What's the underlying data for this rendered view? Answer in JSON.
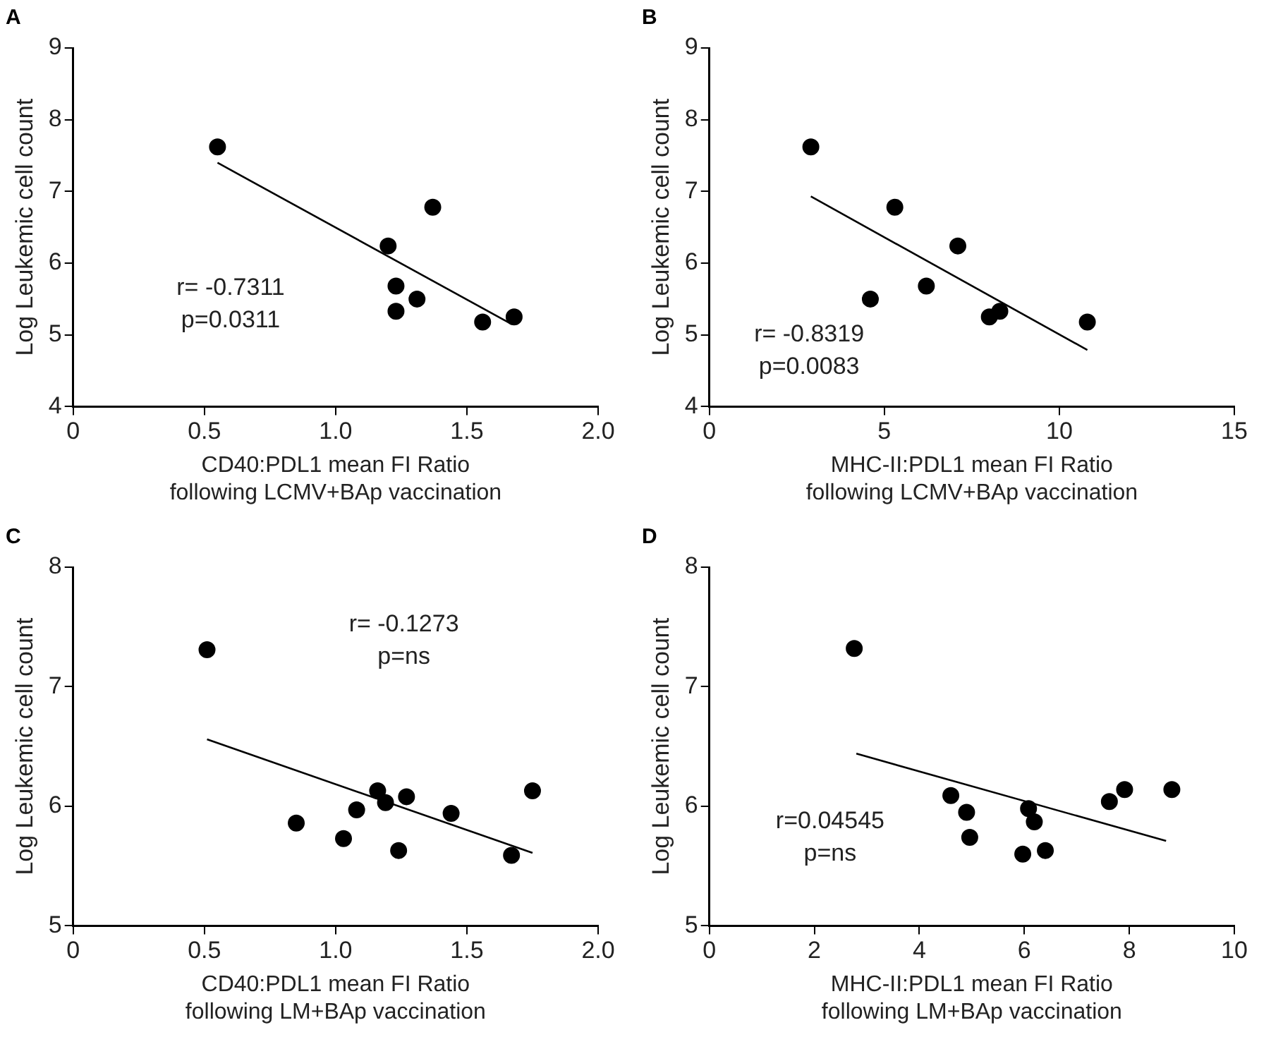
{
  "chart_data": [
    {
      "type": "scatter",
      "title": "A",
      "xlabel": "CD40:PDL1 mean FI Ratio\nfollowing LCMV+BAp vaccination",
      "ylabel": "Log Leukemic cell count",
      "xlim": [
        0,
        2
      ],
      "xticks": [
        {
          "value": 0,
          "label": "0"
        },
        {
          "value": 0.5,
          "label": "0.5"
        },
        {
          "value": 1,
          "label": "1.0"
        },
        {
          "value": 1.5,
          "label": "1.5"
        },
        {
          "value": 2,
          "label": "2.0"
        }
      ],
      "ylim": [
        4,
        9
      ],
      "yticks": [
        4,
        5,
        6,
        7,
        8,
        9
      ],
      "grid": false,
      "legend": false,
      "marker": "circle",
      "annotations": [
        "r= -0.7311",
        "p=0.0311"
      ],
      "series": [
        {
          "color": "#000000",
          "x": [
            0.55,
            1.2,
            1.23,
            1.23,
            1.31,
            1.37,
            1.56,
            1.68
          ],
          "values": [
            7.62,
            6.24,
            5.68,
            5.33,
            5.5,
            6.78,
            5.18,
            5.25
          ]
        },
        {
          "type": "line",
          "color": "#000000",
          "marker": "none",
          "x": [
            0.55,
            1.67
          ],
          "values": [
            7.4,
            5.15
          ]
        }
      ]
    },
    {
      "type": "scatter",
      "title": "B",
      "xlabel": "MHC-II:PDL1 mean FI Ratio\nfollowing LCMV+BAp vaccination",
      "ylabel": "Log Leukemic cell count",
      "xlim": [
        0,
        15
      ],
      "xticks": [
        0,
        5,
        10,
        15
      ],
      "ylim": [
        4,
        9
      ],
      "yticks": [
        4,
        5,
        6,
        7,
        8,
        9
      ],
      "grid": false,
      "legend": false,
      "marker": "circle",
      "annotations": [
        "r= -0.8319",
        "p=0.0083"
      ],
      "series": [
        {
          "color": "#000000",
          "x": [
            2.9,
            4.6,
            5.3,
            6.2,
            7.1,
            8.0,
            8.3,
            10.8
          ],
          "values": [
            7.62,
            5.5,
            6.78,
            5.68,
            6.24,
            5.25,
            5.33,
            5.18
          ]
        },
        {
          "type": "line",
          "color": "#000000",
          "marker": "none",
          "x": [
            2.9,
            10.8
          ],
          "values": [
            6.93,
            4.79
          ]
        }
      ]
    },
    {
      "type": "scatter",
      "title": "C",
      "xlabel": "CD40:PDL1 mean FI Ratio\nfollowing LM+BAp vaccination",
      "ylabel": "Log Leukemic cell count",
      "xlim": [
        0,
        2
      ],
      "xticks": [
        {
          "value": 0,
          "label": "0"
        },
        {
          "value": 0.5,
          "label": "0.5"
        },
        {
          "value": 1,
          "label": "1.0"
        },
        {
          "value": 1.5,
          "label": "1.5"
        },
        {
          "value": 2,
          "label": "2.0"
        }
      ],
      "ylim": [
        5,
        8
      ],
      "yticks": [
        5,
        6,
        7,
        8
      ],
      "grid": false,
      "legend": false,
      "marker": "circle",
      "annotations": [
        "r= -0.1273",
        "p=ns"
      ],
      "series": [
        {
          "color": "#000000",
          "x": [
            0.51,
            0.85,
            1.03,
            1.08,
            1.16,
            1.19,
            1.24,
            1.27,
            1.44,
            1.67,
            1.75
          ],
          "values": [
            7.31,
            5.86,
            5.73,
            5.97,
            6.13,
            6.03,
            5.63,
            6.08,
            5.94,
            5.59,
            6.13
          ]
        },
        {
          "type": "line",
          "color": "#000000",
          "marker": "none",
          "x": [
            0.51,
            1.75
          ],
          "values": [
            6.56,
            5.61
          ]
        }
      ]
    },
    {
      "type": "scatter",
      "title": "D",
      "xlabel": "MHC-II:PDL1 mean FI Ratio\nfollowing LM+BAp vaccination",
      "ylabel": "Log Leukemic cell count",
      "xlim": [
        0,
        10
      ],
      "xticks": [
        0,
        2,
        4,
        6,
        8,
        10
      ],
      "ylim": [
        5,
        8
      ],
      "yticks": [
        5,
        6,
        7,
        8
      ],
      "grid": false,
      "legend": false,
      "marker": "circle",
      "annotations": [
        "r=0.04545",
        "p=ns"
      ],
      "series": [
        {
          "color": "#000000",
          "x": [
            2.76,
            4.6,
            4.9,
            4.96,
            5.97,
            6.08,
            6.19,
            6.4,
            7.62,
            7.91,
            8.81
          ],
          "values": [
            7.32,
            6.09,
            5.95,
            5.74,
            5.6,
            5.98,
            5.87,
            5.63,
            6.04,
            6.14,
            6.14
          ]
        },
        {
          "type": "line",
          "color": "#000000",
          "marker": "none",
          "x": [
            2.8,
            8.7
          ],
          "values": [
            6.44,
            5.71
          ]
        }
      ]
    }
  ]
}
